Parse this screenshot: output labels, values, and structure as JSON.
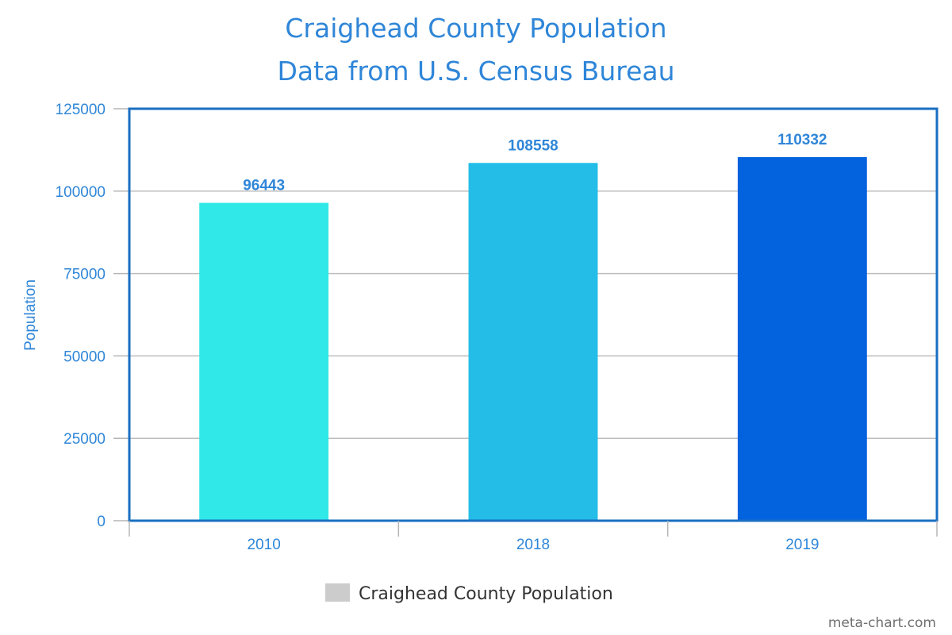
{
  "chart_data": {
    "type": "bar",
    "title": "Craighead County Population",
    "subtitle": "Data from U.S. Census Bureau",
    "xlabel": "",
    "ylabel": "Population",
    "categories": [
      "2010",
      "2018",
      "2019"
    ],
    "values": [
      96443,
      108558,
      110332
    ],
    "value_labels": [
      "96443",
      "108558",
      "110332"
    ],
    "ylim": [
      0,
      125000
    ],
    "y_ticks": [
      0,
      25000,
      50000,
      75000,
      100000,
      125000
    ],
    "y_tick_labels": [
      "0",
      "25000",
      "50000",
      "75000",
      "100000",
      "125000"
    ],
    "bar_colors": [
      "#31e8e8",
      "#23bde8",
      "#0362de"
    ],
    "grid": true,
    "legend": {
      "label": "Craighead County Population",
      "swatch_color": "#cccccc",
      "placement": "bottom-center"
    }
  },
  "colors": {
    "text_accent": "#2f86d8",
    "frame": "#1a6fc2",
    "gridline": "#bdbdbd",
    "legend_text": "#333333",
    "watermark": "#6f6f6f"
  },
  "watermark": "meta-chart.com"
}
